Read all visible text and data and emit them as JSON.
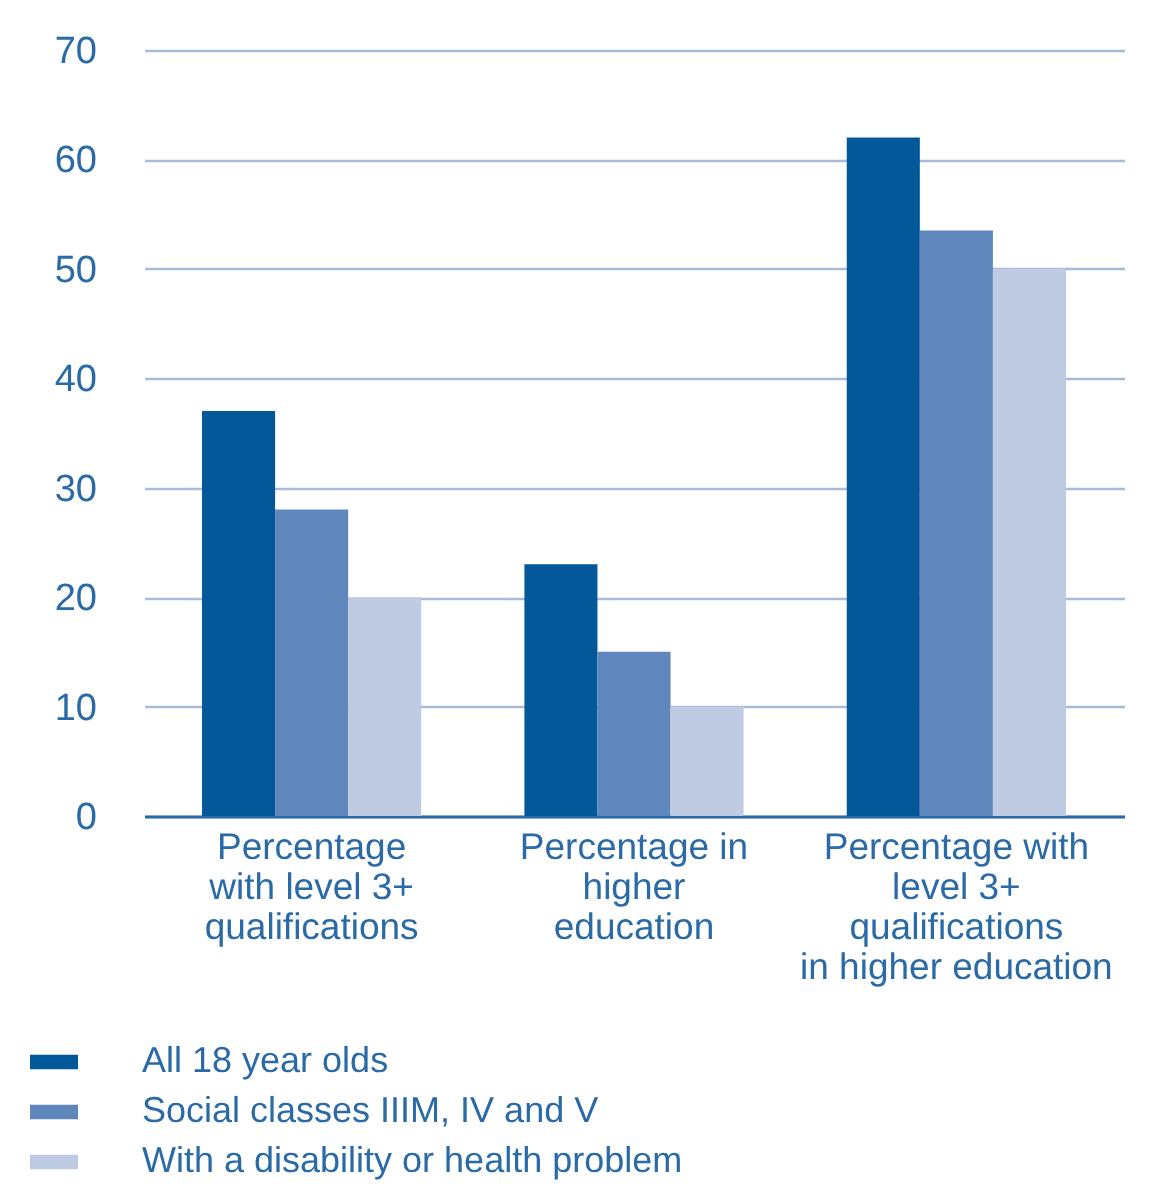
{
  "chart_data": {
    "type": "bar",
    "categories": [
      "Percentage\nwith level 3+\nqualifications",
      "Percentage in\nhigher\neducation",
      "Percentage with\nlevel 3+\nqualifications\nin higher education"
    ],
    "series": [
      {
        "name": "All 18 year olds",
        "color": "#03589a",
        "values": [
          37,
          23,
          62
        ]
      },
      {
        "name": "Social classes IIIM, IV and V",
        "color": "#5f87bb",
        "values": [
          28,
          15,
          53.5
        ]
      },
      {
        "name": "With a disability or health problem",
        "color": "#bfcbe2",
        "values": [
          20,
          10,
          50
        ]
      }
    ],
    "ylim": [
      0,
      70
    ],
    "yticks": [
      0,
      10,
      20,
      30,
      40,
      50,
      60,
      70
    ],
    "grid": "y",
    "legend": "bottom left"
  }
}
